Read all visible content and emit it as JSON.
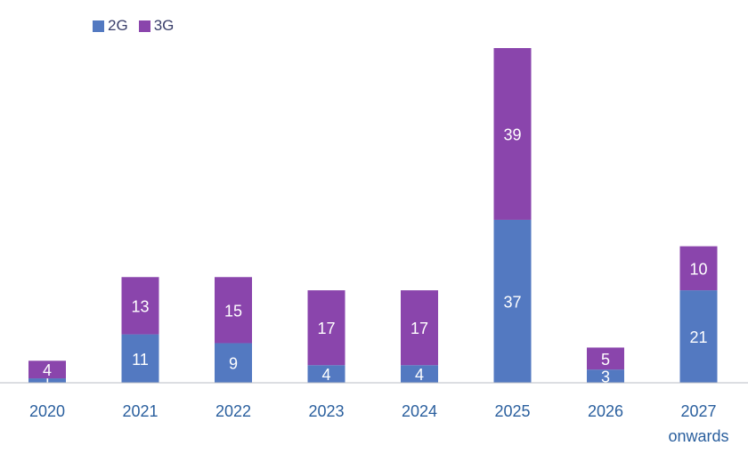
{
  "chart_data": {
    "type": "bar",
    "stacked": true,
    "title": "",
    "xlabel": "",
    "ylabel": "",
    "categories": [
      "2020",
      "2021",
      "2022",
      "2023",
      "2024",
      "2025",
      "2026",
      "2027 onwards"
    ],
    "category_lines": [
      [
        "2020"
      ],
      [
        "2021"
      ],
      [
        "2022"
      ],
      [
        "2023"
      ],
      [
        "2024"
      ],
      [
        "2025"
      ],
      [
        "2026"
      ],
      [
        "2027",
        "onwards"
      ]
    ],
    "series": [
      {
        "name": "2G",
        "color": "#5379c1",
        "values": [
          1,
          11,
          9,
          4,
          4,
          37,
          3,
          21
        ]
      },
      {
        "name": "3G",
        "color": "#8a45ac",
        "values": [
          4,
          13,
          15,
          17,
          17,
          39,
          5,
          10
        ]
      }
    ],
    "ylim": [
      0,
      76
    ],
    "grid": false,
    "legend_position": "top-left"
  }
}
